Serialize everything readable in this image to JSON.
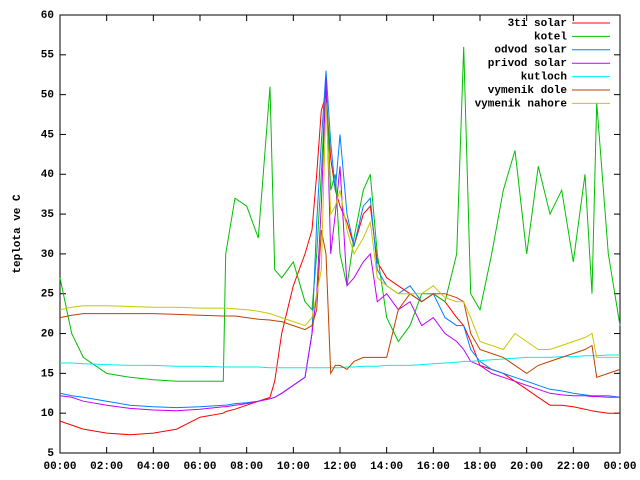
{
  "chart_data": {
    "type": "line",
    "ylabel": "teplota ve C",
    "x": [
      0,
      0.5,
      1,
      2,
      3,
      4,
      5,
      6,
      7,
      7.1,
      7.5,
      8,
      8.5,
      9,
      9.2,
      9.5,
      10,
      10.5,
      10.8,
      11,
      11.2,
      11.4,
      11.6,
      11.8,
      12,
      12.3,
      12.6,
      13,
      13.3,
      13.6,
      14,
      14.5,
      15,
      15.5,
      16,
      16.5,
      17,
      17.3,
      17.6,
      18,
      18.5,
      19,
      19.5,
      20,
      20.5,
      21,
      21.5,
      22,
      22.5,
      22.8,
      23,
      23.5,
      24
    ],
    "xlim": [
      0,
      24
    ],
    "xticks": [
      {
        "value": 0,
        "label": "00:00"
      },
      {
        "value": 2,
        "label": "02:00"
      },
      {
        "value": 4,
        "label": "04:00"
      },
      {
        "value": 6,
        "label": "06:00"
      },
      {
        "value": 8,
        "label": "08:00"
      },
      {
        "value": 10,
        "label": "10:00"
      },
      {
        "value": 12,
        "label": "12:00"
      },
      {
        "value": 14,
        "label": "14:00"
      },
      {
        "value": 16,
        "label": "16:00"
      },
      {
        "value": 18,
        "label": "18:00"
      },
      {
        "value": 20,
        "label": "20:00"
      },
      {
        "value": 22,
        "label": "22:00"
      },
      {
        "value": 24,
        "label": "00:00"
      }
    ],
    "ylim": [
      5,
      60
    ],
    "yticks": [
      5,
      10,
      15,
      20,
      25,
      30,
      35,
      40,
      45,
      50,
      55,
      60
    ],
    "legend": "top-right",
    "series": [
      {
        "name": "3ti solar",
        "color": "#ff0000",
        "values": [
          9,
          8.5,
          8,
          7.5,
          7.3,
          7.5,
          8,
          9.5,
          10,
          10.2,
          10.5,
          11,
          11.5,
          12,
          14,
          20,
          26,
          30,
          33,
          40,
          48,
          50,
          42,
          38,
          36,
          34,
          31,
          35,
          36,
          29,
          27,
          26,
          25,
          24,
          25,
          24,
          22,
          21,
          19,
          16,
          15.5,
          15,
          14,
          13,
          12,
          11,
          11,
          10.8,
          10.5,
          10.3,
          10.2,
          10,
          10
        ]
      },
      {
        "name": "kotel",
        "color": "#00c000",
        "values": [
          27,
          20,
          17,
          15,
          14.5,
          14.2,
          14,
          14,
          14,
          30,
          37,
          36,
          32,
          51,
          28,
          27,
          29,
          24,
          23,
          30,
          40,
          52,
          38,
          40,
          30,
          26,
          32,
          38,
          40,
          30,
          22,
          19,
          21,
          25,
          25,
          24,
          30,
          56,
          25,
          23,
          30,
          38,
          43,
          30,
          41,
          35,
          38,
          29,
          40,
          25,
          49,
          30,
          21
        ]
      },
      {
        "name": "odvod solar",
        "color": "#0080ff",
        "values": [
          12.5,
          12.2,
          12,
          11.5,
          11,
          10.8,
          10.7,
          10.8,
          11,
          11,
          11.2,
          11.3,
          11.5,
          11.8,
          12,
          12.5,
          13.5,
          14.5,
          20,
          34,
          44,
          53,
          44,
          38,
          45,
          35,
          31,
          36,
          37,
          28,
          26,
          25,
          26,
          24,
          25,
          22,
          21,
          21,
          18,
          16.5,
          15.5,
          15,
          14.5,
          14,
          13.5,
          13,
          12.8,
          12.5,
          12.3,
          12.2,
          12.2,
          12.2,
          12
        ]
      },
      {
        "name": "privod solar",
        "color": "#c000ff",
        "values": [
          12.2,
          12,
          11.5,
          11,
          10.6,
          10.4,
          10.3,
          10.5,
          10.8,
          10.8,
          11,
          11.2,
          11.5,
          11.8,
          12,
          12.5,
          13.5,
          14.5,
          20,
          25,
          36,
          52,
          30,
          35,
          41,
          26,
          27,
          29,
          30,
          24,
          25,
          23,
          24,
          21,
          22,
          20,
          19,
          18,
          16.5,
          16,
          15,
          14.5,
          14,
          13.5,
          13,
          12.5,
          12.3,
          12.2,
          12.2,
          12.1,
          12.1,
          12,
          12
        ]
      },
      {
        "name": "kutloch",
        "color": "#00eeee",
        "values": [
          16.3,
          16.3,
          16.2,
          16.1,
          16,
          16,
          15.9,
          15.9,
          15.8,
          15.8,
          15.8,
          15.8,
          15.8,
          15.7,
          15.7,
          15.7,
          15.7,
          15.7,
          15.7,
          15.7,
          15.7,
          15.7,
          15.7,
          15.7,
          15.7,
          15.8,
          15.8,
          15.9,
          15.9,
          15.9,
          16,
          16,
          16,
          16.1,
          16.2,
          16.3,
          16.4,
          16.5,
          16.5,
          16.6,
          16.7,
          16.8,
          16.9,
          17,
          17,
          17,
          17.1,
          17.1,
          17.2,
          17.2,
          17.2,
          17.3,
          17.3
        ]
      },
      {
        "name": "vymenik dole",
        "color": "#c04000",
        "values": [
          22,
          22.3,
          22.5,
          22.5,
          22.5,
          22.5,
          22.4,
          22.3,
          22.2,
          22.2,
          22.2,
          22,
          21.8,
          21.7,
          21.6,
          21.5,
          21,
          20.5,
          21,
          23,
          33,
          30,
          15,
          16,
          16,
          15.5,
          16.5,
          17,
          17,
          17,
          17,
          23,
          25,
          24,
          25,
          25,
          24.5,
          24,
          20,
          18,
          17.5,
          17,
          16,
          15,
          16,
          16.5,
          17,
          17.5,
          18,
          18.5,
          14.5,
          15,
          15.5
        ]
      },
      {
        "name": "vymenik nahore",
        "color": "#c8c800",
        "values": [
          23,
          23.3,
          23.5,
          23.5,
          23.4,
          23.3,
          23.3,
          23.2,
          23.2,
          23.2,
          23.1,
          23,
          22.8,
          22.5,
          22.3,
          22,
          21.5,
          21,
          22,
          25,
          28,
          49,
          35,
          36,
          38,
          33,
          30,
          32,
          34,
          27,
          26,
          25,
          25,
          25,
          26,
          24.5,
          24,
          24,
          22,
          19,
          18.5,
          18,
          20,
          19,
          18,
          18,
          18.5,
          19,
          19.5,
          20,
          17,
          17,
          17
        ]
      }
    ]
  }
}
